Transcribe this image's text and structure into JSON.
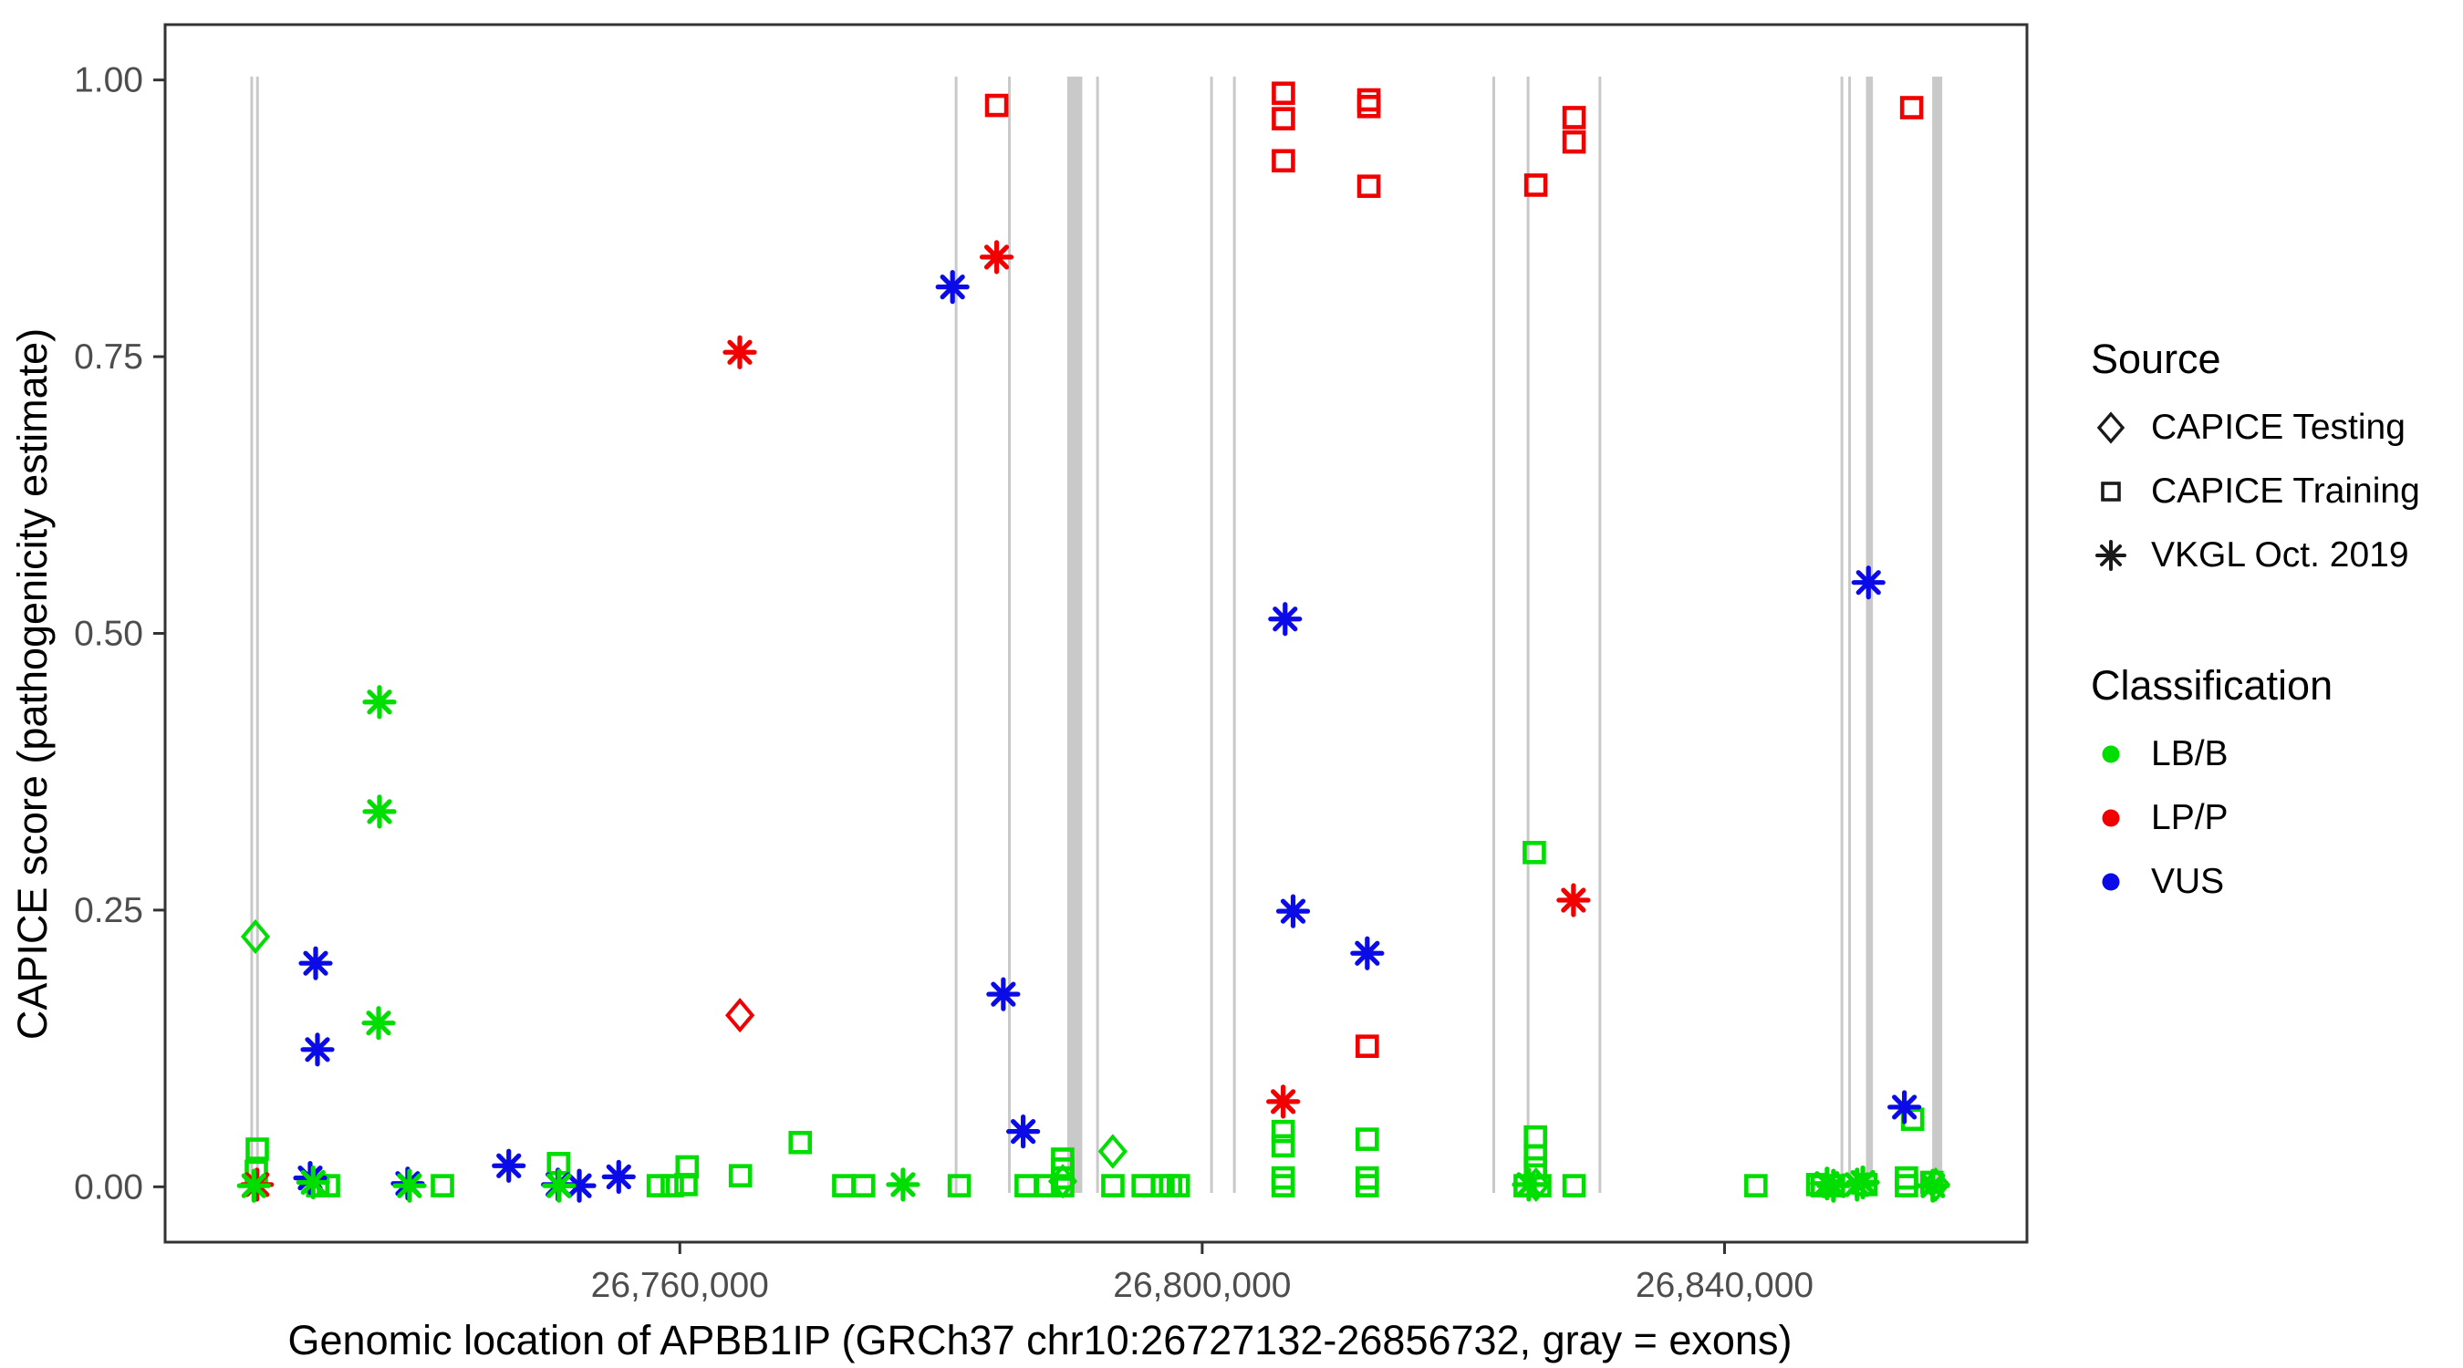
{
  "chart_data": {
    "type": "scatter",
    "title": "",
    "xlabel": "Genomic location of APBB1IP (GRCh37 chr10:26727132-26856732, gray = exons)",
    "ylabel": "CAPICE score (pathogenicity estimate)",
    "xlim": [
      26720583,
      26863157
    ],
    "ylim": [
      -0.05,
      1.05
    ],
    "grid": "off",
    "x_ticks": [
      {
        "value": 26760000,
        "label": "26,760,000"
      },
      {
        "value": 26800000,
        "label": "26,800,000"
      },
      {
        "value": 26840000,
        "label": "26,840,000"
      }
    ],
    "y_ticks": [
      {
        "value": 0.0,
        "label": "0.00"
      },
      {
        "value": 0.25,
        "label": "0.25"
      },
      {
        "value": 0.5,
        "label": "0.50"
      },
      {
        "value": 0.75,
        "label": "0.75"
      },
      {
        "value": 1.0,
        "label": "1.00"
      }
    ],
    "exon_color": "#C9C9C9",
    "exons_note": "gray vertical bands = exons, [start_bp, end_bp]",
    "exons": [
      [
        26727110,
        26727320
      ],
      [
        26727550,
        26727760
      ],
      [
        26781050,
        26781260
      ],
      [
        26785130,
        26785340
      ],
      [
        26789660,
        26790820
      ],
      [
        26791880,
        26792090
      ],
      [
        26800610,
        26800820
      ],
      [
        26802360,
        26802570
      ],
      [
        26822220,
        26822430
      ],
      [
        26824850,
        26825060
      ],
      [
        26830350,
        26830560
      ],
      [
        26848880,
        26849090
      ],
      [
        26849470,
        26849680
      ],
      [
        26850830,
        26851360
      ],
      [
        26855900,
        26856670
      ]
    ],
    "classification_colors": {
      "LB/B": "#00DD00",
      "LP/P": "#F10000",
      "VUS": "#0B0BE8"
    },
    "source_shapes": {
      "testing": "diamond",
      "training": "square",
      "vkgl": "asterisk"
    },
    "points_format": [
      "genomic_position_bp",
      "capice_score",
      "source",
      "classification"
    ],
    "points": [
      [
        26727500,
        0.226,
        "testing",
        "LB/B"
      ],
      [
        26764600,
        0.155,
        "testing",
        "LP/P"
      ],
      [
        26793150,
        0.032,
        "testing",
        "LB/B"
      ],
      [
        26789320,
        0.005,
        "testing",
        "LB/B"
      ],
      [
        26825560,
        0.002,
        "testing",
        "LB/B"
      ],
      [
        26856170,
        0.002,
        "testing",
        "LB/B"
      ],
      [
        26784260,
        0.977,
        "training",
        "LP/P"
      ],
      [
        26806220,
        0.988,
        "training",
        "LP/P"
      ],
      [
        26806220,
        0.965,
        "training",
        "LP/P"
      ],
      [
        26806220,
        0.927,
        "training",
        "LP/P"
      ],
      [
        26812760,
        0.982,
        "training",
        "LP/P"
      ],
      [
        26812760,
        0.976,
        "training",
        "LP/P"
      ],
      [
        26812760,
        0.904,
        "training",
        "LP/P"
      ],
      [
        26812640,
        0.127,
        "training",
        "LP/P"
      ],
      [
        26825550,
        0.905,
        "training",
        "LP/P"
      ],
      [
        26828480,
        0.966,
        "training",
        "LP/P"
      ],
      [
        26828480,
        0.944,
        "training",
        "LP/P"
      ],
      [
        26854330,
        0.975,
        "training",
        "LP/P"
      ],
      [
        26764590,
        0.754,
        "vkgl",
        "LP/P"
      ],
      [
        26784260,
        0.84,
        "vkgl",
        "LP/P"
      ],
      [
        26828430,
        0.259,
        "vkgl",
        "LP/P"
      ],
      [
        26806200,
        0.077,
        "vkgl",
        "LP/P"
      ],
      [
        26727620,
        0.002,
        "vkgl",
        "LP/P"
      ],
      [
        26780880,
        0.813,
        "vkgl",
        "VUS"
      ],
      [
        26806350,
        0.513,
        "vkgl",
        "VUS"
      ],
      [
        26851020,
        0.546,
        "vkgl",
        "VUS"
      ],
      [
        26806960,
        0.249,
        "vkgl",
        "VUS"
      ],
      [
        26812640,
        0.211,
        "vkgl",
        "VUS"
      ],
      [
        26784770,
        0.174,
        "vkgl",
        "VUS"
      ],
      [
        26786290,
        0.05,
        "vkgl",
        "VUS"
      ],
      [
        26853770,
        0.072,
        "vkgl",
        "VUS"
      ],
      [
        26732110,
        0.202,
        "vkgl",
        "VUS"
      ],
      [
        26732250,
        0.124,
        "vkgl",
        "VUS"
      ],
      [
        26746900,
        0.019,
        "vkgl",
        "VUS"
      ],
      [
        26755320,
        0.009,
        "vkgl",
        "VUS"
      ],
      [
        26731690,
        0.008,
        "vkgl",
        "VUS"
      ],
      [
        26739160,
        0.003,
        "vkgl",
        "VUS"
      ],
      [
        26750670,
        0.002,
        "vkgl",
        "VUS"
      ],
      [
        26752300,
        0.001,
        "vkgl",
        "VUS"
      ],
      [
        26737000,
        0.438,
        "vkgl",
        "LB/B"
      ],
      [
        26737000,
        0.339,
        "vkgl",
        "LB/B"
      ],
      [
        26736930,
        0.148,
        "vkgl",
        "LB/B"
      ],
      [
        26777090,
        0.002,
        "vkgl",
        "LB/B"
      ],
      [
        26727380,
        0.001,
        "vkgl",
        "LB/B"
      ],
      [
        26731920,
        0.004,
        "vkgl",
        "LB/B"
      ],
      [
        26739300,
        0.001,
        "vkgl",
        "LB/B"
      ],
      [
        26750750,
        0.001,
        "vkgl",
        "LB/B"
      ],
      [
        26825010,
        0.002,
        "vkgl",
        "LB/B"
      ],
      [
        26847850,
        0.003,
        "vkgl",
        "LB/B"
      ],
      [
        26848340,
        0.001,
        "vkgl",
        "LB/B"
      ],
      [
        26850150,
        0.002,
        "vkgl",
        "LB/B"
      ],
      [
        26850590,
        0.004,
        "vkgl",
        "LB/B"
      ],
      [
        26855950,
        0.001,
        "vkgl",
        "LB/B"
      ],
      [
        26727640,
        0.034,
        "training",
        "LB/B"
      ],
      [
        26727570,
        0.014,
        "training",
        "LB/B"
      ],
      [
        26732270,
        0.001,
        "training",
        "LB/B"
      ],
      [
        26733090,
        0.001,
        "training",
        "LB/B"
      ],
      [
        26741820,
        0.001,
        "training",
        "LB/B"
      ],
      [
        26750710,
        0.021,
        "training",
        "LB/B"
      ],
      [
        26758350,
        0.001,
        "training",
        "LB/B"
      ],
      [
        26759420,
        0.001,
        "training",
        "LB/B"
      ],
      [
        26760470,
        0.002,
        "training",
        "LB/B"
      ],
      [
        26760560,
        0.018,
        "training",
        "LB/B"
      ],
      [
        26764640,
        0.01,
        "training",
        "LB/B"
      ],
      [
        26769220,
        0.04,
        "training",
        "LB/B"
      ],
      [
        26772550,
        0.001,
        "training",
        "LB/B"
      ],
      [
        26774070,
        0.001,
        "training",
        "LB/B"
      ],
      [
        26781400,
        0.001,
        "training",
        "LB/B"
      ],
      [
        26786520,
        0.001,
        "training",
        "LB/B"
      ],
      [
        26788080,
        0.001,
        "training",
        "LB/B"
      ],
      [
        26789315,
        0.025,
        "training",
        "LB/B"
      ],
      [
        26789315,
        0.016,
        "training",
        "LB/B"
      ],
      [
        26789315,
        0.008,
        "training",
        "LB/B"
      ],
      [
        26789315,
        0.001,
        "training",
        "LB/B"
      ],
      [
        26793160,
        0.001,
        "training",
        "LB/B"
      ],
      [
        26795480,
        0.001,
        "training",
        "LB/B"
      ],
      [
        26797000,
        0.001,
        "training",
        "LB/B"
      ],
      [
        26797580,
        0.001,
        "training",
        "LB/B"
      ],
      [
        26798170,
        0.001,
        "training",
        "LB/B"
      ],
      [
        26806200,
        0.05,
        "training",
        "LB/B"
      ],
      [
        26806200,
        0.037,
        "training",
        "LB/B"
      ],
      [
        26806200,
        0.008,
        "training",
        "LB/B"
      ],
      [
        26806200,
        0.001,
        "training",
        "LB/B"
      ],
      [
        26812640,
        0.043,
        "training",
        "LB/B"
      ],
      [
        26812640,
        0.008,
        "training",
        "LB/B"
      ],
      [
        26812640,
        0.001,
        "training",
        "LB/B"
      ],
      [
        26825430,
        0.302,
        "training",
        "LB/B"
      ],
      [
        26825520,
        0.045,
        "training",
        "LB/B"
      ],
      [
        26825520,
        0.028,
        "training",
        "LB/B"
      ],
      [
        26825520,
        0.017,
        "training",
        "LB/B"
      ],
      [
        26824730,
        0.001,
        "training",
        "LB/B"
      ],
      [
        26825850,
        0.001,
        "training",
        "LB/B"
      ],
      [
        26828480,
        0.001,
        "training",
        "LB/B"
      ],
      [
        26842400,
        0.001,
        "training",
        "LB/B"
      ],
      [
        26847480,
        0.001,
        "training",
        "LB/B"
      ],
      [
        26848340,
        0.001,
        "training",
        "LB/B"
      ],
      [
        26847130,
        0.002,
        "training",
        "LB/B"
      ],
      [
        26850830,
        0.002,
        "training",
        "LB/B"
      ],
      [
        26853930,
        0.008,
        "training",
        "LB/B"
      ],
      [
        26853930,
        0.001,
        "training",
        "LB/B"
      ],
      [
        26854400,
        0.061,
        "training",
        "LB/B"
      ],
      [
        26855880,
        0.004,
        "training",
        "LB/B"
      ]
    ]
  },
  "legend": {
    "source": {
      "title": "Source",
      "items": [
        {
          "label": "CAPICE Testing",
          "shape": "diamond"
        },
        {
          "label": "CAPICE Training",
          "shape": "square"
        },
        {
          "label": "VKGL Oct. 2019",
          "shape": "asterisk"
        }
      ]
    },
    "classification": {
      "title": "Classification",
      "items": [
        {
          "label": "LB/B",
          "color": "#00DD00"
        },
        {
          "label": "LP/P",
          "color": "#F10000"
        },
        {
          "label": "VUS",
          "color": "#0B0BE8"
        }
      ]
    }
  },
  "style": {
    "panel_border_color": "#333333",
    "tick_color": "#333333",
    "tick_label_color": "#4D4D4D"
  }
}
